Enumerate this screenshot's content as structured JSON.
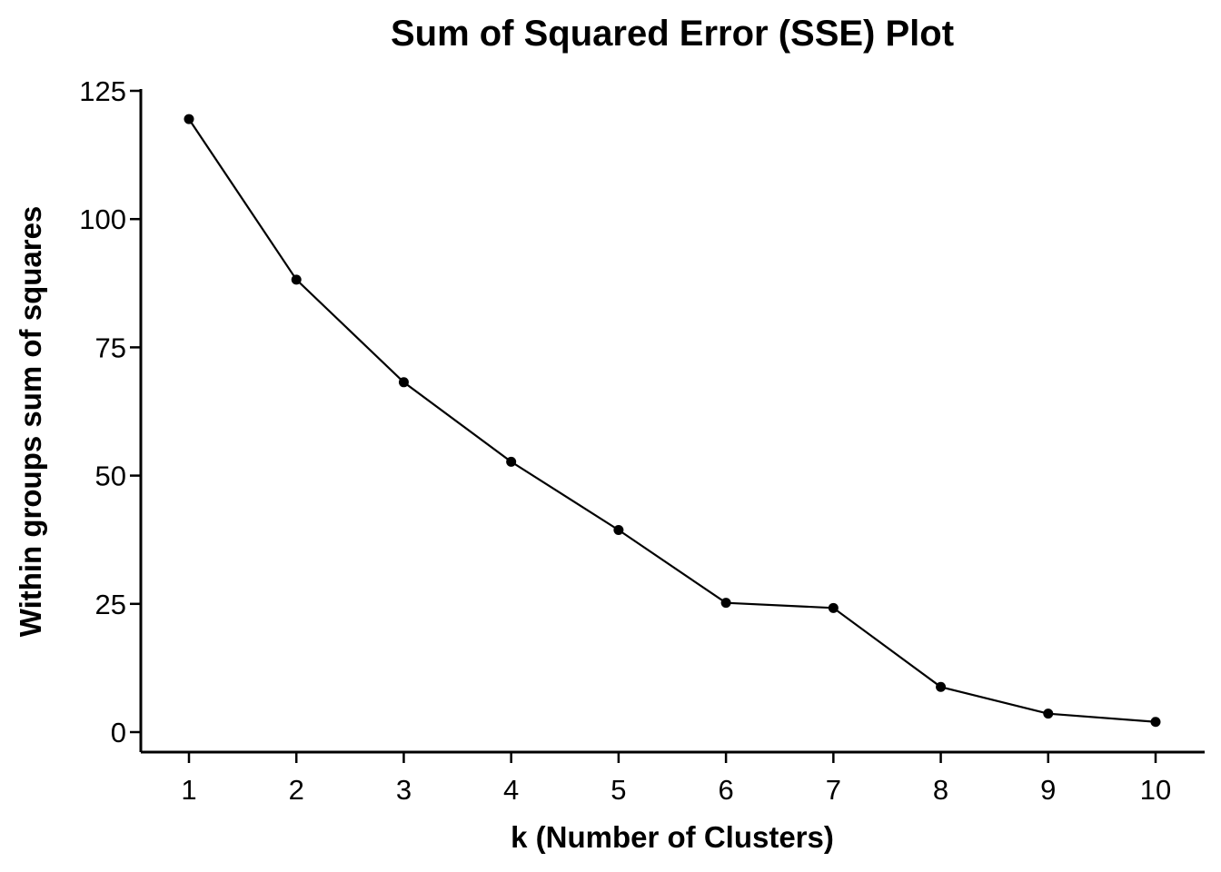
{
  "chart_data": {
    "type": "line",
    "title": "Sum of Squared Error (SSE) Plot",
    "xlabel": "k (Number of Clusters)",
    "ylabel": "Within groups sum of squares",
    "x": [
      1,
      2,
      3,
      4,
      5,
      6,
      7,
      8,
      9,
      10
    ],
    "series": [
      {
        "values": [
          119.5,
          88.2,
          68.2,
          52.7,
          39.4,
          25.2,
          24.2,
          8.8,
          3.6,
          2.0
        ]
      }
    ],
    "xticks": [
      "1",
      "2",
      "3",
      "4",
      "5",
      "6",
      "7",
      "8",
      "9",
      "10"
    ],
    "yticks": [
      "0",
      "25",
      "50",
      "75",
      "100",
      "125"
    ],
    "xlim": [
      1,
      10
    ],
    "ylim": [
      0,
      125
    ],
    "grid": false,
    "colors": {
      "line": "#000000",
      "points": "#000000"
    }
  }
}
